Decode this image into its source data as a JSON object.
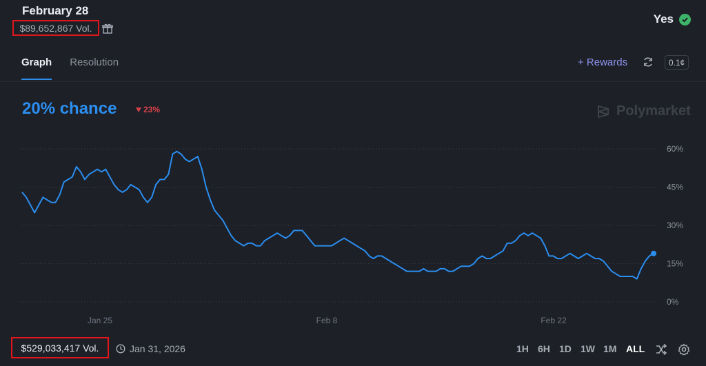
{
  "header": {
    "title": "February 28",
    "volume": "$89,652,867 Vol.",
    "outcome": "Yes"
  },
  "tabs": [
    {
      "label": "Graph",
      "active": true
    },
    {
      "label": "Resolution",
      "active": false
    }
  ],
  "toolbar": {
    "rewards_label": "+ Rewards",
    "tick_size": "0.1¢"
  },
  "summary": {
    "chance": "20% chance",
    "delta": "23%"
  },
  "brand": "Polymarket",
  "footer": {
    "volume": "$529,033,417 Vol.",
    "date": "Jan 31, 2026",
    "ranges": [
      "1H",
      "6H",
      "1D",
      "1W",
      "1M",
      "ALL"
    ],
    "active_range": "ALL"
  },
  "colors": {
    "line": "#2b8ef0",
    "accent_rewards": "#8f95f0",
    "negative": "#d9414a",
    "positive": "#3db468"
  },
  "chart_data": {
    "type": "line",
    "ylim": [
      0,
      60
    ],
    "yticks": [
      0,
      15,
      30,
      45,
      60
    ],
    "ytick_labels": [
      "0%",
      "15%",
      "30%",
      "45%",
      "60%"
    ],
    "xticks": [
      "Jan 25",
      "Feb 8",
      "Feb 22"
    ],
    "grid": true,
    "series": [
      {
        "values": [
          43,
          41,
          38,
          35,
          38,
          41,
          40,
          39,
          39,
          42,
          47,
          48,
          49,
          53,
          51,
          48,
          50,
          51,
          52,
          51,
          52,
          49,
          46,
          44,
          43,
          44,
          46,
          45,
          44,
          41,
          39,
          41,
          46,
          48,
          48,
          50,
          58,
          59,
          58,
          56,
          55,
          56,
          57,
          52,
          45,
          40,
          36,
          34,
          32,
          29,
          26,
          24,
          23,
          22,
          23,
          23,
          22,
          22,
          24,
          25,
          26,
          27,
          26,
          25,
          26,
          28,
          28,
          28,
          26,
          24,
          22,
          22,
          22,
          22,
          22,
          23,
          24,
          25,
          24,
          23,
          22,
          21,
          20,
          18,
          17,
          18,
          18,
          17,
          16,
          15,
          14,
          13,
          12,
          12,
          12,
          12,
          13,
          12,
          12,
          12,
          13,
          13,
          12,
          12,
          13,
          14,
          14,
          14,
          15,
          17,
          18,
          17,
          17,
          18,
          19,
          20,
          23,
          23,
          24,
          26,
          27,
          26,
          27,
          26,
          25,
          22,
          18,
          18,
          17,
          17,
          18,
          19,
          18,
          17,
          18,
          19,
          18,
          17,
          17,
          16,
          14,
          12,
          11,
          10,
          10,
          10,
          10,
          9,
          13,
          16,
          18,
          19
        ]
      }
    ]
  }
}
